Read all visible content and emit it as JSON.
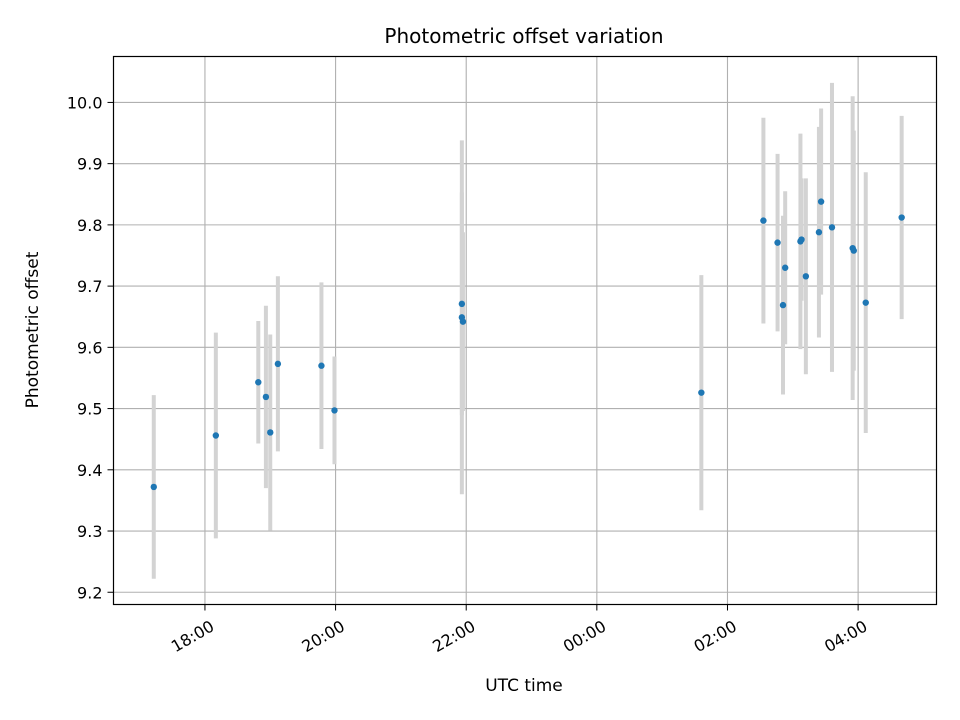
{
  "chart_data": {
    "type": "scatter",
    "title": "Photometric offset variation",
    "xlabel": "UTC time",
    "ylabel": "Photometric offset",
    "grid": true,
    "x_ticks": [
      {
        "label": "18:00",
        "hours": 18
      },
      {
        "label": "20:00",
        "hours": 20
      },
      {
        "label": "22:00",
        "hours": 22
      },
      {
        "label": "00:00",
        "hours": 24
      },
      {
        "label": "02:00",
        "hours": 26
      },
      {
        "label": "04:00",
        "hours": 28
      }
    ],
    "xlim_hours": [
      16.6,
      29.2
    ],
    "y_ticks": [
      9.2,
      9.3,
      9.4,
      9.5,
      9.6,
      9.7,
      9.8,
      9.9,
      10.0
    ],
    "ylim": [
      9.18,
      10.075
    ],
    "colors": {
      "point": "#1f77b4",
      "errorbar": "#d3d3d3",
      "grid": "#b0b0b0"
    },
    "series": [
      {
        "points": [
          {
            "t": "17:13",
            "y": 9.372,
            "err": 0.15
          },
          {
            "t": "18:10",
            "y": 9.456,
            "err": 0.168
          },
          {
            "t": "18:49",
            "y": 9.543,
            "err": 0.1
          },
          {
            "t": "18:56",
            "y": 9.519,
            "err": 0.149
          },
          {
            "t": "19:00",
            "y": 9.461,
            "err": 0.16
          },
          {
            "t": "19:07",
            "y": 9.573,
            "err": 0.143
          },
          {
            "t": "19:47",
            "y": 9.57,
            "err": 0.136
          },
          {
            "t": "19:59",
            "y": 9.497,
            "err": 0.088
          },
          {
            "t": "21:56",
            "y": 9.671,
            "err": 0.182
          },
          {
            "t": "21:56",
            "y": 9.649,
            "err": 0.289
          },
          {
            "t": "21:57",
            "y": 9.642,
            "err": 0.146
          },
          {
            "t": "01:36",
            "y": 9.526,
            "err": 0.192
          },
          {
            "t": "02:33",
            "y": 9.807,
            "err": 0.168
          },
          {
            "t": "02:46",
            "y": 9.771,
            "err": 0.145
          },
          {
            "t": "02:51",
            "y": 9.669,
            "err": 0.146
          },
          {
            "t": "02:53",
            "y": 9.73,
            "err": 0.125
          },
          {
            "t": "03:07",
            "y": 9.773,
            "err": 0.176
          },
          {
            "t": "03:08",
            "y": 9.776,
            "err": 0.1
          },
          {
            "t": "03:12",
            "y": 9.716,
            "err": 0.16
          },
          {
            "t": "03:24",
            "y": 9.788,
            "err": 0.172
          },
          {
            "t": "03:26",
            "y": 9.838,
            "err": 0.152
          },
          {
            "t": "03:36",
            "y": 9.796,
            "err": 0.236
          },
          {
            "t": "03:55",
            "y": 9.762,
            "err": 0.248
          },
          {
            "t": "03:56",
            "y": 9.758,
            "err": 0.196
          },
          {
            "t": "04:07",
            "y": 9.673,
            "err": 0.213
          },
          {
            "t": "04:40",
            "y": 9.812,
            "err": 0.166
          }
        ]
      }
    ]
  }
}
